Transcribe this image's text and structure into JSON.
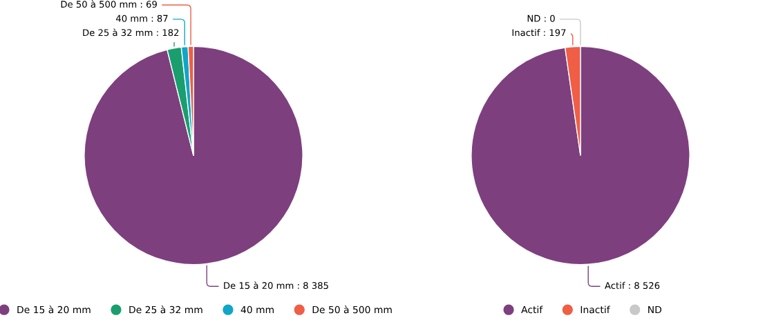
{
  "chart_data": [
    {
      "type": "pie",
      "categories": [
        "De 15 à 20 mm",
        "De 25 à 32 mm",
        "40 mm",
        "De 50 à 500 mm"
      ],
      "values": [
        8385,
        182,
        87,
        69
      ],
      "value_labels": [
        "De 15 à 20 mm : 8 385",
        "De 25 à 32 mm : 182",
        "40 mm : 87",
        "De 50 à 500 mm : 69"
      ],
      "colors": [
        "#7e3f7e",
        "#1a9e6e",
        "#10a6c8",
        "#ef5e45"
      ],
      "legend": "bottom"
    },
    {
      "type": "pie",
      "categories": [
        "Actif",
        "Inactif",
        "ND"
      ],
      "values": [
        8526,
        197,
        0
      ],
      "value_labels": [
        "Actif : 8 526",
        "Inactif : 197",
        "ND : 0"
      ],
      "colors": [
        "#7e3f7e",
        "#ef5e45",
        "#c8c8c8"
      ],
      "legend": "bottom"
    }
  ]
}
